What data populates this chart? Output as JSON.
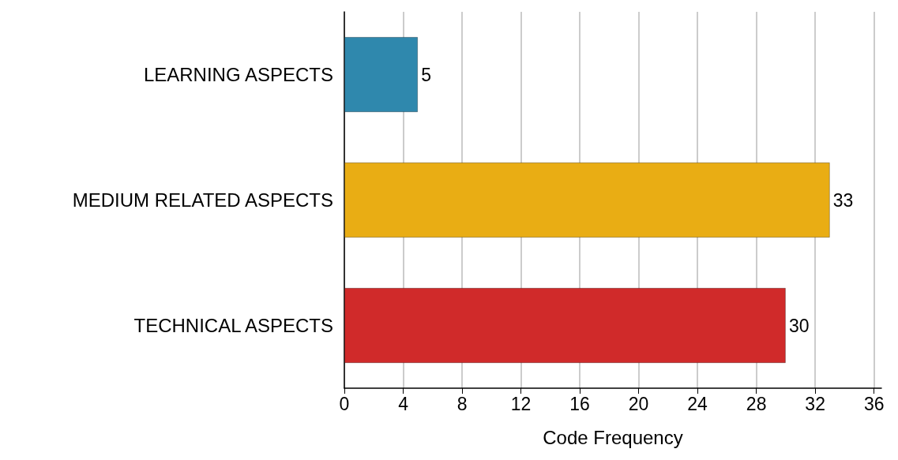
{
  "chart_data": {
    "type": "bar",
    "orientation": "horizontal",
    "xlabel": "Code Frequency",
    "categories": [
      "LEARNING ASPECTS",
      "MEDIUM RELATED ASPECTS",
      "TECHNICAL ASPECTS"
    ],
    "values": [
      5,
      33,
      30
    ],
    "colors": [
      "#2f88ad",
      "#e9ad14",
      "#d02a2a"
    ],
    "xlim": [
      0,
      36.5
    ],
    "xticks": [
      0,
      4,
      8,
      12,
      16,
      20,
      24,
      28,
      32,
      36
    ],
    "grid": "x",
    "data_labels": true
  }
}
